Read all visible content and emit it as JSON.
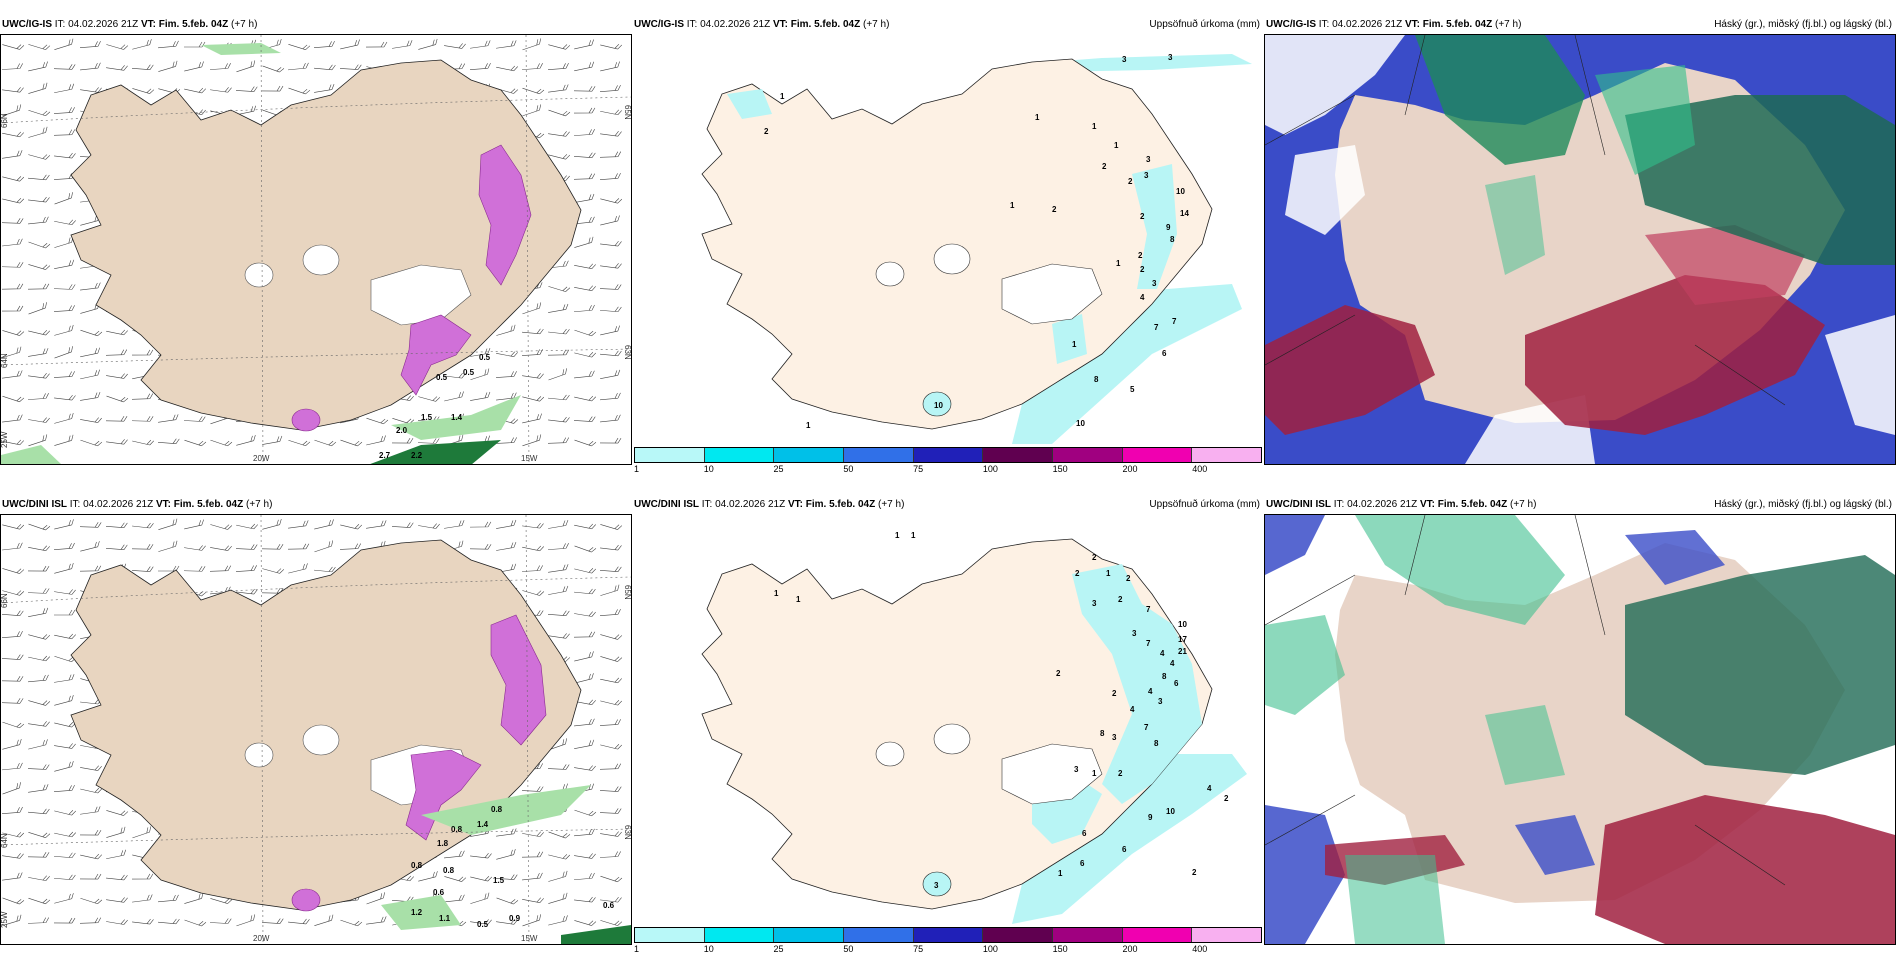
{
  "colors": {
    "land": "#f5e6d3",
    "land_panel1": "#e8d5c0",
    "sea": "#ffffff",
    "precip_light": "#b8f5f5",
    "magenta": "#d070d8",
    "green_light": "#a8e0a8",
    "green_dark": "#1e7a3a"
  },
  "panels": [
    {
      "id": "top-left",
      "model": "UWC/IG-IS",
      "it_label": "IT:",
      "it_value": "04.02.2026 21Z",
      "vt_label": "VT:",
      "vt_value": "Fim. 5.feb. 04Z",
      "lead": "(+7 h)",
      "right_title": "",
      "axis_labels": [
        "66N",
        "65N",
        "64N",
        "63N",
        "25W",
        "20W",
        "15W"
      ],
      "value_labels": [
        "0.5",
        "0.5",
        "0.5",
        "1.5",
        "2.0",
        "2.7",
        "2.2",
        "1.4"
      ]
    },
    {
      "id": "top-middle",
      "model": "UWC/IG-IS",
      "it_label": "IT:",
      "it_value": "04.02.2026 21Z",
      "vt_label": "VT:",
      "vt_value": "Fim. 5.feb. 04Z",
      "lead": "(+7 h)",
      "right_title": "Uppsöfnuð úrkoma (mm)",
      "value_labels": [
        "3",
        "3",
        "1",
        "2",
        "1",
        "1",
        "1",
        "2",
        "2",
        "3",
        "3",
        "10",
        "14",
        "1",
        "2",
        "2",
        "9",
        "8",
        "1",
        "2",
        "2",
        "3",
        "4",
        "7",
        "7",
        "6",
        "8",
        "5",
        "10",
        "10",
        "1",
        "1"
      ]
    },
    {
      "id": "top-right",
      "model": "UWC/IG-IS",
      "it_label": "IT:",
      "it_value": "04.02.2026 21Z",
      "vt_label": "VT:",
      "vt_value": "Fim. 5.feb. 04Z",
      "lead": "(+7 h)",
      "right_title": "Háský (gr.), miðský (fj.bl.) og lágský (bl.)"
    },
    {
      "id": "bottom-left",
      "model": "UWC/DINI ISL",
      "it_label": "IT:",
      "it_value": "04.02.2026 21Z",
      "vt_label": "VT:",
      "vt_value": "Fim. 5.feb. 04Z",
      "lead": "(+7 h)",
      "right_title": "",
      "axis_labels": [
        "66N",
        "65N",
        "64N",
        "63N",
        "25W",
        "20W",
        "15W"
      ],
      "value_labels": [
        "0.8",
        "1.4",
        "0.8",
        "1.8",
        "0.8",
        "0.8",
        "0.6",
        "1.5",
        "1.2",
        "1.1",
        "0.5",
        "0.9",
        "0.6"
      ]
    },
    {
      "id": "bottom-middle",
      "model": "UWC/DINI ISL",
      "it_label": "IT:",
      "it_value": "04.02.2026 21Z",
      "vt_label": "VT:",
      "vt_value": "Fim. 5.feb. 04Z",
      "lead": "(+7 h)",
      "right_title": "Uppsöfnuð úrkoma (mm)",
      "value_labels": [
        "1",
        "1",
        "2",
        "2",
        "1",
        "2",
        "1",
        "1",
        "3",
        "2",
        "7",
        "10",
        "3",
        "17",
        "21",
        "2",
        "7",
        "4",
        "4",
        "8",
        "6",
        "2",
        "4",
        "3",
        "4",
        "8",
        "3",
        "7",
        "8",
        "3",
        "1",
        "2",
        "4",
        "2",
        "9",
        "10",
        "6",
        "6",
        "6",
        "2",
        "1",
        "3"
      ]
    },
    {
      "id": "bottom-right",
      "model": "UWC/DINI ISL",
      "it_label": "IT:",
      "it_value": "04.02.2026 21Z",
      "vt_label": "VT:",
      "vt_value": "Fim. 5.feb. 04Z",
      "lead": "(+7 h)",
      "right_title": "Háský (gr.), miðský (fj.bl.) og lágský (bl.)"
    }
  ],
  "colorbar": {
    "labels": [
      "1",
      "10",
      "25",
      "50",
      "75",
      "100",
      "150",
      "200",
      "400"
    ],
    "colors": [
      "#b8f8f8",
      "#00e8f0",
      "#00c0e8",
      "#3070e8",
      "#2020b8",
      "#600050",
      "#a00080",
      "#f000b0",
      "#f8b0f0"
    ]
  }
}
